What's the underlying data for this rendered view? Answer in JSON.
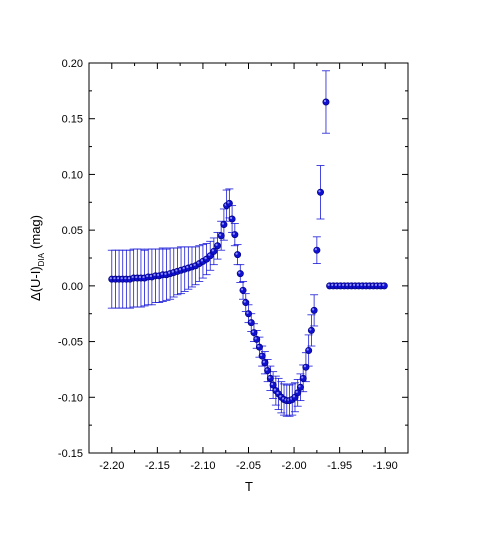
{
  "chart_data": {
    "type": "scatter",
    "xlabel": "T",
    "ylabel_main": "Δ(U-I)",
    "ylabel_sub": "DIA",
    "ylabel_unit": "(mag)",
    "xlim": [
      -2.225,
      -1.875
    ],
    "ylim": [
      -0.15,
      0.2
    ],
    "x_ticks": [
      "-2.20",
      "-2.15",
      "-2.10",
      "-2.05",
      "-2.00",
      "-1.95",
      "-1.90"
    ],
    "y_ticks": [
      "0.20",
      "0.15",
      "0.10",
      "0.05",
      "0.00",
      "-0.05",
      "-0.10",
      "-0.15"
    ],
    "marker_color": "#1010d0",
    "error_color": "#1a1ad8",
    "series": [
      {
        "x": [
          -2.2,
          -2.196,
          -2.192,
          -2.188,
          -2.184,
          -2.18,
          -2.176,
          -2.172,
          -2.168,
          -2.164,
          -2.16,
          -2.156,
          -2.152,
          -2.148,
          -2.144,
          -2.14,
          -2.136,
          -2.132,
          -2.128,
          -2.124,
          -2.12,
          -2.116,
          -2.112,
          -2.108,
          -2.104,
          -2.1,
          -2.096,
          -2.092,
          -2.088,
          -2.084,
          -2.08,
          -2.077,
          -2.074,
          -2.071,
          -2.068,
          -2.065,
          -2.062,
          -2.059,
          -2.056,
          -2.053,
          -2.05,
          -2.047,
          -2.044,
          -2.041,
          -2.038,
          -2.035,
          -2.032,
          -2.029,
          -2.026,
          -2.023,
          -2.02,
          -2.017,
          -2.014,
          -2.011,
          -2.008,
          -2.005,
          -2.002,
          -1.999,
          -1.996,
          -1.993,
          -1.99,
          -1.987,
          -1.984,
          -1.981,
          -1.978,
          -1.975,
          -1.971,
          -1.965,
          -1.961,
          -1.957,
          -1.953,
          -1.949,
          -1.945,
          -1.941,
          -1.937,
          -1.933,
          -1.929,
          -1.925,
          -1.921,
          -1.917,
          -1.913,
          -1.909,
          -1.905,
          -1.901
        ],
        "y": [
          0.006,
          0.006,
          0.006,
          0.006,
          0.006,
          0.006,
          0.007,
          0.007,
          0.007,
          0.007,
          0.008,
          0.008,
          0.009,
          0.009,
          0.01,
          0.01,
          0.011,
          0.012,
          0.013,
          0.014,
          0.015,
          0.016,
          0.017,
          0.018,
          0.02,
          0.022,
          0.024,
          0.027,
          0.031,
          0.036,
          0.045,
          0.055,
          0.072,
          0.074,
          0.06,
          0.046,
          0.028,
          0.011,
          -0.004,
          -0.015,
          -0.025,
          -0.033,
          -0.042,
          -0.048,
          -0.055,
          -0.063,
          -0.069,
          -0.076,
          -0.083,
          -0.089,
          -0.094,
          -0.097,
          -0.1,
          -0.102,
          -0.103,
          -0.103,
          -0.102,
          -0.1,
          -0.096,
          -0.091,
          -0.083,
          -0.073,
          -0.058,
          -0.04,
          -0.022,
          0.032,
          0.084,
          0.165,
          0.0,
          0.0,
          0.0,
          0.0,
          0.0,
          0.0,
          0.0,
          0.0,
          0.0,
          0.0,
          0.0,
          0.0,
          0.0,
          0.0,
          0.0,
          0.0
        ],
        "err": [
          0.026,
          0.026,
          0.026,
          0.026,
          0.026,
          0.026,
          0.026,
          0.026,
          0.026,
          0.025,
          0.025,
          0.025,
          0.024,
          0.024,
          0.024,
          0.023,
          0.023,
          0.022,
          0.021,
          0.021,
          0.02,
          0.019,
          0.018,
          0.017,
          0.016,
          0.015,
          0.014,
          0.013,
          0.012,
          0.012,
          0.013,
          0.014,
          0.014,
          0.013,
          0.012,
          0.01,
          0.009,
          0.008,
          0.008,
          0.008,
          0.008,
          0.008,
          0.008,
          0.008,
          0.009,
          0.009,
          0.01,
          0.01,
          0.011,
          0.012,
          0.013,
          0.014,
          0.014,
          0.014,
          0.014,
          0.014,
          0.014,
          0.013,
          0.012,
          0.012,
          0.012,
          0.013,
          0.014,
          0.014,
          0.014,
          0.012,
          0.024,
          0.028,
          0.001,
          0.001,
          0.001,
          0.001,
          0.001,
          0.001,
          0.001,
          0.001,
          0.001,
          0.001,
          0.001,
          0.001,
          0.001,
          0.001,
          0.001,
          0.001
        ]
      }
    ]
  }
}
